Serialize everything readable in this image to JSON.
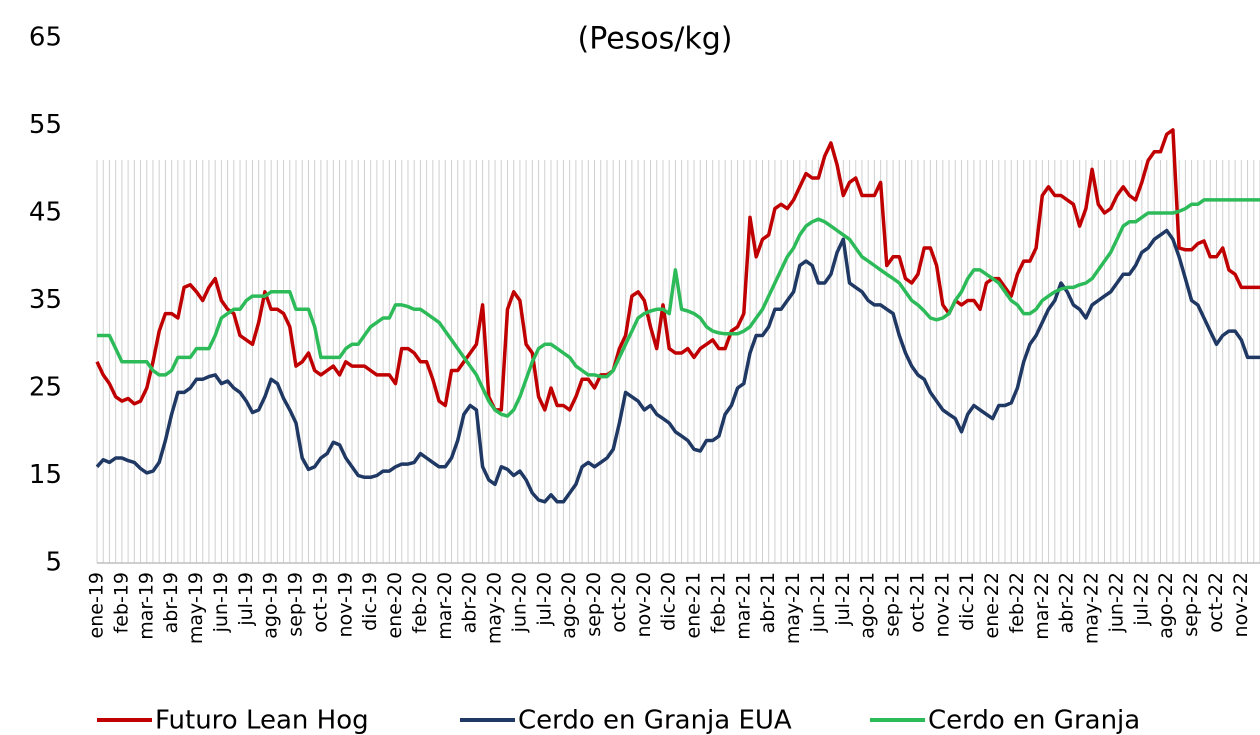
{
  "chart_data": {
    "type": "line",
    "title": "(Pesos/kg)",
    "categories": [
      "ene-19",
      null,
      null,
      null,
      "feb-19",
      null,
      null,
      null,
      "mar-19",
      null,
      null,
      null,
      "abr-19",
      null,
      null,
      null,
      "may-19",
      null,
      null,
      null,
      "jun-19",
      null,
      null,
      null,
      "jul-19",
      null,
      null,
      null,
      "ago-19",
      null,
      null,
      null,
      "sep-19",
      null,
      null,
      null,
      "oct-19",
      null,
      null,
      null,
      "nov-19",
      null,
      null,
      null,
      "dic-19",
      null,
      null,
      null,
      "ene-20",
      null,
      null,
      null,
      "feb-20",
      null,
      null,
      null,
      "mar-20",
      null,
      null,
      null,
      "abr-20",
      null,
      null,
      null,
      "may-20",
      null,
      null,
      null,
      "jun-20",
      null,
      null,
      null,
      "jul-20",
      null,
      null,
      null,
      "ago-20",
      null,
      null,
      null,
      "sep-20",
      null,
      null,
      null,
      "oct-20",
      null,
      null,
      null,
      "nov-20",
      null,
      null,
      null,
      "dic-20",
      null,
      null,
      null,
      "ene-21",
      null,
      null,
      null,
      "feb-21",
      null,
      null,
      null,
      "mar-21",
      null,
      null,
      null,
      "abr-21",
      null,
      null,
      null,
      "may-21",
      null,
      null,
      null,
      "jun-21",
      null,
      null,
      null,
      "jul-21",
      null,
      null,
      null,
      "ago-21",
      null,
      null,
      null,
      "sep-21",
      null,
      null,
      null,
      "oct-21",
      null,
      null,
      null,
      "nov-21",
      null,
      null,
      null,
      "dic-21",
      null,
      null,
      null,
      "ene-22",
      null,
      null,
      null,
      "feb-22",
      null,
      null,
      null,
      "mar-22",
      null,
      null,
      null,
      "abr-22",
      null,
      null,
      null,
      "may-22",
      null,
      null,
      null,
      "jun-22",
      null,
      null,
      null,
      "jul-22",
      null,
      null,
      null,
      "ago-22",
      null,
      null,
      null,
      "sep-22",
      null,
      null,
      null,
      "oct-22",
      null,
      null,
      null,
      "nov-22",
      null,
      null,
      null
    ],
    "series": [
      {
        "name": "Futuro Lean Hog",
        "color": "#c00000",
        "values": [
          28,
          26.5,
          25.5,
          24,
          23.5,
          23.8,
          23.2,
          23.5,
          25,
          28,
          31.5,
          33.5,
          33.5,
          33,
          36.5,
          36.8,
          36,
          35,
          36.5,
          37.5,
          35,
          34,
          33.5,
          31,
          30.5,
          30,
          32.5,
          36,
          34,
          34,
          33.5,
          32,
          27.5,
          28,
          29,
          27,
          26.5,
          27,
          27.5,
          26.5,
          28,
          27.5,
          27.5,
          27.5,
          27,
          26.5,
          26.5,
          26.5,
          25.5,
          29.5,
          29.5,
          29,
          28,
          28,
          26,
          23.5,
          23,
          27,
          27,
          28,
          29,
          30,
          34.5,
          24,
          22.5,
          22.5,
          34,
          36,
          35,
          30,
          29,
          24,
          22.5,
          25,
          23,
          23,
          22.5,
          24,
          26,
          26,
          25,
          26.5,
          26.5,
          27,
          29.5,
          31,
          35.5,
          36,
          35,
          32,
          29.5,
          34.5,
          29.5,
          29,
          29,
          29.5,
          28.5,
          29.5,
          30,
          30.5,
          29.5,
          29.5,
          31.5,
          32,
          33.5,
          44.5,
          40,
          42,
          42.5,
          45.5,
          46,
          45.5,
          46.5,
          48,
          49.5,
          49,
          49,
          51.5,
          53,
          50.5,
          47,
          48.5,
          49,
          47,
          47,
          47,
          48.5,
          39,
          40,
          40,
          37.5,
          37,
          38,
          41,
          41,
          39,
          34.5,
          33.5,
          35,
          34.5,
          35,
          35,
          34,
          37,
          37.5,
          37.5,
          36.5,
          35.5,
          38,
          39.5,
          39.5,
          41,
          47,
          48,
          47,
          47,
          46.5,
          46,
          43.5,
          45.5,
          50,
          46,
          45,
          45.5,
          47,
          48,
          47,
          46.5,
          48.5,
          51,
          52,
          52,
          54,
          54.5,
          41,
          40.8,
          40.8,
          41.5,
          41.8,
          40,
          40,
          41,
          38.5,
          38,
          36.5,
          36.5,
          36.5,
          36.5
        ]
      },
      {
        "name": "Cerdo en Granja EUA",
        "color": "#1f3864",
        "values": [
          16,
          16.8,
          16.5,
          17,
          17,
          16.7,
          16.5,
          15.8,
          15.3,
          15.5,
          16.5,
          19,
          22,
          24.5,
          24.5,
          25,
          26,
          26,
          26.3,
          26.5,
          25.5,
          25.8,
          25,
          24.5,
          23.5,
          22.2,
          22.5,
          24,
          26,
          25.5,
          23.8,
          22.5,
          21,
          17,
          15.7,
          16,
          17,
          17.5,
          18.8,
          18.5,
          17,
          16,
          15,
          14.8,
          14.8,
          15,
          15.5,
          15.5,
          16,
          16.3,
          16.3,
          16.5,
          17.5,
          17,
          16.5,
          16,
          16,
          17,
          19,
          22,
          23,
          22.5,
          16,
          14.5,
          14,
          16,
          15.7,
          15,
          15.5,
          14.5,
          13,
          12.2,
          12,
          12.8,
          12,
          12,
          13,
          14,
          16,
          16.5,
          16,
          16.5,
          17,
          18,
          21,
          24.5,
          24,
          23.5,
          22.5,
          23,
          22,
          21.5,
          21,
          20,
          19.5,
          19,
          18,
          17.8,
          19,
          19,
          19.5,
          22,
          23,
          25,
          25.5,
          29,
          31,
          31,
          32,
          34,
          34,
          35,
          36,
          39,
          39.5,
          39,
          37,
          37,
          38,
          40.5,
          42,
          37,
          36.5,
          36,
          35,
          34.5,
          34.5,
          34,
          33.5,
          31,
          29,
          27.5,
          26.5,
          26,
          24.5,
          23.5,
          22.5,
          22,
          21.5,
          20,
          22,
          23,
          22.5,
          22,
          21.5,
          23,
          23,
          23.3,
          25,
          28,
          30,
          31,
          32.5,
          34,
          35,
          37,
          36,
          34.5,
          34,
          33,
          34.5,
          35,
          35.5,
          36,
          37,
          38,
          38,
          39,
          40.5,
          41,
          42,
          42.5,
          43,
          42,
          40,
          37.5,
          35,
          34.5,
          33,
          31.5,
          30,
          31,
          31.5,
          31.5,
          30.5,
          28.5,
          28.5,
          28.5
        ]
      },
      {
        "name": "Cerdo en Granja",
        "color": "#2dbb5a",
        "values": [
          31,
          31,
          31,
          29.5,
          28,
          28,
          28,
          28,
          28,
          27,
          26.5,
          26.5,
          27,
          28.5,
          28.5,
          28.5,
          29.5,
          29.5,
          29.5,
          31,
          33,
          33.5,
          34,
          34,
          35,
          35.5,
          35.5,
          35.5,
          36,
          36,
          36,
          36,
          34,
          34,
          34,
          32,
          28.5,
          28.5,
          28.5,
          28.5,
          29.5,
          30,
          30,
          31,
          32,
          32.5,
          33,
          33,
          34.5,
          34.5,
          34.3,
          34,
          34,
          33.5,
          33,
          32.5,
          31.5,
          30.5,
          29.5,
          28.5,
          27.5,
          26.5,
          25,
          23.5,
          22.5,
          22,
          21.8,
          22.5,
          24,
          26,
          28,
          29.5,
          30,
          30,
          29.5,
          29,
          28.5,
          27.5,
          27,
          26.5,
          26.5,
          26.3,
          26.3,
          27,
          28.5,
          30,
          31.5,
          33,
          33.5,
          33.8,
          34,
          34,
          33.5,
          38.5,
          34,
          33.8,
          33.5,
          33,
          32,
          31.5,
          31.3,
          31.2,
          31.2,
          31.2,
          31.5,
          32,
          33,
          34,
          35.5,
          37,
          38.5,
          40,
          41,
          42.5,
          43.5,
          44,
          44.3,
          44,
          43.5,
          43,
          42.5,
          42,
          41,
          40,
          39.5,
          39,
          38.5,
          38,
          37.5,
          37,
          36,
          35,
          34.5,
          33.8,
          33,
          32.8,
          33,
          33.5,
          35,
          36,
          37.5,
          38.5,
          38.5,
          38,
          37.5,
          37,
          36,
          35,
          34.5,
          33.5,
          33.5,
          34,
          35,
          35.5,
          36,
          36.3,
          36.5,
          36.5,
          36.8,
          37,
          37.5,
          38.5,
          39.5,
          40.5,
          42,
          43.5,
          44,
          44,
          44.5,
          45,
          45,
          45,
          45,
          45,
          45.2,
          45.5,
          46,
          46,
          46.5,
          46.5,
          46.5,
          46.5,
          46.5,
          46.5,
          46.5,
          46.5,
          46.5,
          46.5
        ]
      }
    ],
    "ylim": [
      5,
      65
    ],
    "yticks": [
      5,
      15,
      25,
      35,
      45,
      55,
      65
    ],
    "legend": "bottom"
  }
}
